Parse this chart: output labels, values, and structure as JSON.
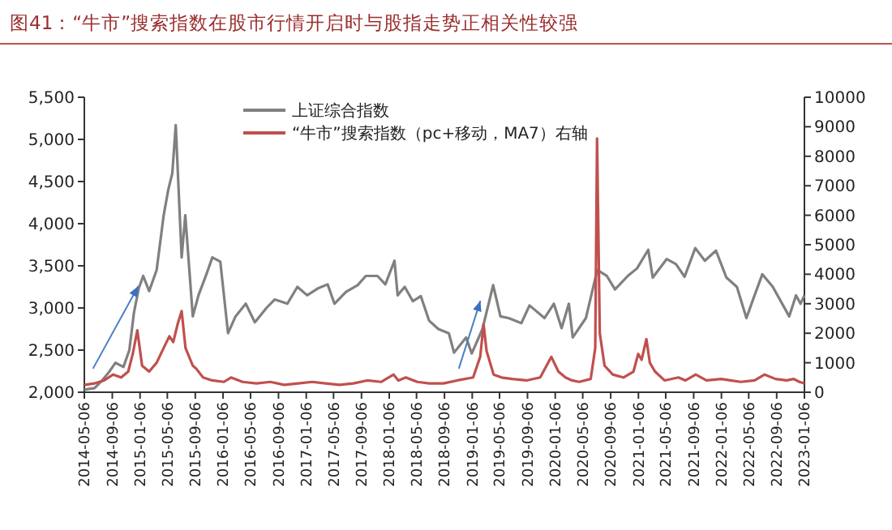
{
  "chart_data": {
    "type": "line",
    "title": "图41：“牛市”搜索指数在股市行情开启时与股指走势正相关性较强",
    "xlim": [
      "2014-05-06",
      "2023-01-06"
    ],
    "xticks": [
      {
        "value": "2014-05-06",
        "label": "2014-05-06"
      },
      {
        "value": "2014-09-06",
        "label": "2014-09-06"
      },
      {
        "value": "2015-01-06",
        "label": "2015-01-06"
      },
      {
        "value": "2015-05-06",
        "label": "2015-05-06"
      },
      {
        "value": "2015-09-06",
        "label": "2015-09-06"
      },
      {
        "value": "2016-01-06",
        "label": "2016-01-06"
      },
      {
        "value": "2016-05-06",
        "label": "2016-05-06"
      },
      {
        "value": "2016-09-06",
        "label": "2016-09-06"
      },
      {
        "value": "2017-01-06",
        "label": "2017-01-06"
      },
      {
        "value": "2017-05-06",
        "label": "2017-05-06"
      },
      {
        "value": "2017-09-06",
        "label": "2017-09-06"
      },
      {
        "value": "2018-01-06",
        "label": "2018-01-06"
      },
      {
        "value": "2018-05-06",
        "label": "2018-05-06"
      },
      {
        "value": "2018-09-06",
        "label": "2018-09-06"
      },
      {
        "value": "2019-01-06",
        "label": "2019-01-06"
      },
      {
        "value": "2019-05-06",
        "label": "2019-05-06"
      },
      {
        "value": "2019-09-06",
        "label": "2019-09-06"
      },
      {
        "value": "2020-01-06",
        "label": "2020-01-06"
      },
      {
        "value": "2020-05-06",
        "label": "2020-05-06"
      },
      {
        "value": "2020-09-06",
        "label": "2020-09-06"
      },
      {
        "value": "2021-01-06",
        "label": "2021-01-06"
      },
      {
        "value": "2021-05-06",
        "label": "2021-05-06"
      },
      {
        "value": "2021-09-06",
        "label": "2021-09-06"
      },
      {
        "value": "2022-01-06",
        "label": "2022-01-06"
      },
      {
        "value": "2022-05-06",
        "label": "2022-05-06"
      },
      {
        "value": "2022-09-06",
        "label": "2022-09-06"
      },
      {
        "value": "2023-01-06",
        "label": "2023-01-06"
      }
    ],
    "ylim": [
      2000,
      5500
    ],
    "yticks": [
      {
        "value": 2000,
        "label": "2,000"
      },
      {
        "value": 2500,
        "label": "2,500"
      },
      {
        "value": 3000,
        "label": "3,000"
      },
      {
        "value": 3500,
        "label": "3,500"
      },
      {
        "value": 4000,
        "label": "4,000"
      },
      {
        "value": 4500,
        "label": "4,500"
      },
      {
        "value": 5000,
        "label": "5,000"
      },
      {
        "value": 5500,
        "label": "5,500"
      }
    ],
    "y2lim": [
      0,
      10000
    ],
    "y2ticks": [
      0,
      1000,
      2000,
      3000,
      4000,
      5000,
      6000,
      7000,
      8000,
      9000,
      10000
    ],
    "legend": "top",
    "grid": false,
    "marker": "none",
    "line_style": "solid",
    "series": [
      {
        "name": "上证综合指数",
        "color": "#808080",
        "x": [
          "2014-05-06",
          "2014-06-20",
          "2014-07-20",
          "2014-08-20",
          "2014-09-20",
          "2014-10-25",
          "2014-11-20",
          "2014-12-10",
          "2014-12-31",
          "2015-01-20",
          "2015-02-15",
          "2015-03-20",
          "2015-04-20",
          "2015-05-10",
          "2015-05-28",
          "2015-06-12",
          "2015-07-08",
          "2015-07-24",
          "2015-08-26",
          "2015-09-20",
          "2015-10-25",
          "2015-11-20",
          "2015-12-25",
          "2016-01-28",
          "2016-03-01",
          "2016-04-15",
          "2016-05-25",
          "2016-07-15",
          "2016-08-20",
          "2016-10-15",
          "2016-11-28",
          "2017-01-10",
          "2017-02-25",
          "2017-04-10",
          "2017-05-10",
          "2017-06-30",
          "2017-08-20",
          "2017-09-25",
          "2017-11-15",
          "2017-12-20",
          "2018-01-29",
          "2018-02-12",
          "2018-03-15",
          "2018-04-20",
          "2018-05-25",
          "2018-06-30",
          "2018-08-10",
          "2018-09-25",
          "2018-10-18",
          "2018-12-10",
          "2019-01-04",
          "2019-02-20",
          "2019-04-08",
          "2019-05-10",
          "2019-06-15",
          "2019-08-10",
          "2019-09-15",
          "2019-11-20",
          "2019-12-31",
          "2020-02-03",
          "2020-03-06",
          "2020-03-23",
          "2020-05-20",
          "2020-07-09",
          "2020-08-20",
          "2020-09-25",
          "2020-11-20",
          "2020-12-31",
          "2021-02-18",
          "2021-03-10",
          "2021-05-10",
          "2021-06-20",
          "2021-07-28",
          "2021-09-13",
          "2021-10-25",
          "2021-12-13",
          "2022-01-28",
          "2022-03-15",
          "2022-04-26",
          "2022-05-25",
          "2022-07-05",
          "2022-08-20",
          "2022-10-31",
          "2022-11-30",
          "2022-12-20",
          "2023-01-06"
        ],
        "values": [
          2030,
          2050,
          2130,
          2230,
          2350,
          2300,
          2500,
          2940,
          3230,
          3380,
          3200,
          3450,
          4100,
          4400,
          4600,
          5170,
          3600,
          4100,
          2900,
          3150,
          3400,
          3600,
          3550,
          2700,
          2900,
          3050,
          2830,
          3000,
          3100,
          3050,
          3250,
          3150,
          3230,
          3280,
          3050,
          3190,
          3270,
          3380,
          3380,
          3280,
          3560,
          3150,
          3250,
          3080,
          3140,
          2850,
          2750,
          2700,
          2470,
          2650,
          2460,
          2750,
          3270,
          2900,
          2880,
          2820,
          3030,
          2880,
          3050,
          2760,
          3050,
          2650,
          2880,
          3450,
          3380,
          3220,
          3380,
          3470,
          3690,
          3360,
          3580,
          3520,
          3370,
          3710,
          3560,
          3680,
          3360,
          3250,
          2880,
          3100,
          3400,
          3250,
          2900,
          3150,
          3050,
          3150
        ]
      },
      {
        "name": "“牛市”搜索指数（pc+移动，MA7）右轴",
        "color": "#c0504d",
        "axis": "y2",
        "x": [
          "2014-05-06",
          "2014-06-20",
          "2014-08-01",
          "2014-09-10",
          "2014-10-15",
          "2014-11-15",
          "2014-12-05",
          "2014-12-25",
          "2015-01-15",
          "2015-02-15",
          "2015-03-20",
          "2015-04-20",
          "2015-05-15",
          "2015-06-01",
          "2015-06-20",
          "2015-07-08",
          "2015-07-25",
          "2015-08-26",
          "2015-09-10",
          "2015-10-10",
          "2015-11-20",
          "2016-01-10",
          "2016-02-10",
          "2016-04-01",
          "2016-06-01",
          "2016-08-01",
          "2016-10-01",
          "2016-12-01",
          "2017-02-01",
          "2017-04-01",
          "2017-06-01",
          "2017-08-01",
          "2017-10-01",
          "2017-12-01",
          "2018-01-25",
          "2018-02-15",
          "2018-03-20",
          "2018-05-10",
          "2018-07-01",
          "2018-09-01",
          "2018-11-01",
          "2019-01-10",
          "2019-02-10",
          "2019-02-25",
          "2019-03-10",
          "2019-04-10",
          "2019-05-15",
          "2019-07-01",
          "2019-09-01",
          "2019-11-01",
          "2019-12-20",
          "2020-01-20",
          "2020-02-20",
          "2020-03-20",
          "2020-04-20",
          "2020-06-10",
          "2020-06-30",
          "2020-07-08",
          "2020-07-20",
          "2020-08-10",
          "2020-09-15",
          "2020-11-01",
          "2020-12-15",
          "2021-01-05",
          "2021-01-20",
          "2021-02-10",
          "2021-02-25",
          "2021-03-20",
          "2021-05-01",
          "2021-07-01",
          "2021-08-01",
          "2021-09-15",
          "2021-11-01",
          "2022-01-05",
          "2022-02-15",
          "2022-04-01",
          "2022-06-01",
          "2022-07-15",
          "2022-09-01",
          "2022-10-20",
          "2022-11-20",
          "2022-12-15",
          "2023-01-06"
        ],
        "values": [
          250,
          300,
          400,
          600,
          500,
          700,
          1300,
          2100,
          900,
          700,
          1000,
          1500,
          1900,
          1700,
          2300,
          2750,
          1500,
          900,
          800,
          500,
          400,
          350,
          500,
          350,
          300,
          350,
          250,
          300,
          350,
          300,
          250,
          300,
          400,
          350,
          600,
          400,
          500,
          350,
          300,
          300,
          400,
          500,
          1200,
          2300,
          1400,
          600,
          500,
          450,
          400,
          500,
          1200,
          700,
          500,
          400,
          350,
          450,
          1500,
          8600,
          2000,
          900,
          600,
          500,
          700,
          1300,
          1100,
          1800,
          1000,
          700,
          400,
          500,
          400,
          600,
          400,
          450,
          400,
          350,
          400,
          600,
          450,
          400,
          450,
          350,
          300
        ]
      }
    ]
  }
}
